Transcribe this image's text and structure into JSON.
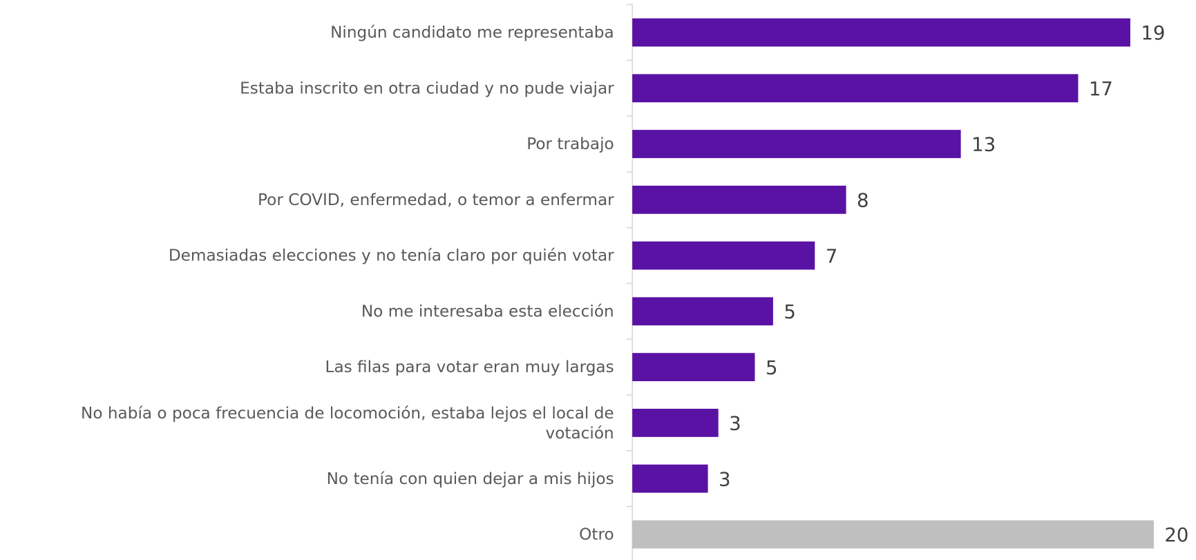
{
  "chart_data": {
    "type": "hbar",
    "categories": [
      "Ningún candidato me representaba",
      "Estaba inscrito en otra ciudad y no pude viajar",
      "Por trabajo",
      "Por COVID, enfermedad, o temor a enfermar",
      "Demasiadas elecciones y no tenía claro por quién votar",
      "No me interesaba esta elección",
      "Las filas para votar eran muy largas",
      "No había o poca frecuencia de locomoción, estaba lejos el local de votación",
      "No tenía con quien dejar a mis hijos",
      "Otro"
    ],
    "values": [
      19.1,
      17.1,
      12.6,
      8.2,
      7.0,
      5.4,
      4.7,
      3.3,
      2.9,
      20
    ],
    "value_labels": [
      "19",
      "17",
      "13",
      "8",
      "7",
      "5",
      "5",
      "3",
      "3",
      "20"
    ],
    "colors": [
      "#5a12a4",
      "#5a12a4",
      "#5a12a4",
      "#5a12a4",
      "#5a12a4",
      "#5a12a4",
      "#5a12a4",
      "#5a12a4",
      "#5a12a4",
      "#bfbfbf"
    ],
    "xlim": [
      0,
      20
    ]
  }
}
